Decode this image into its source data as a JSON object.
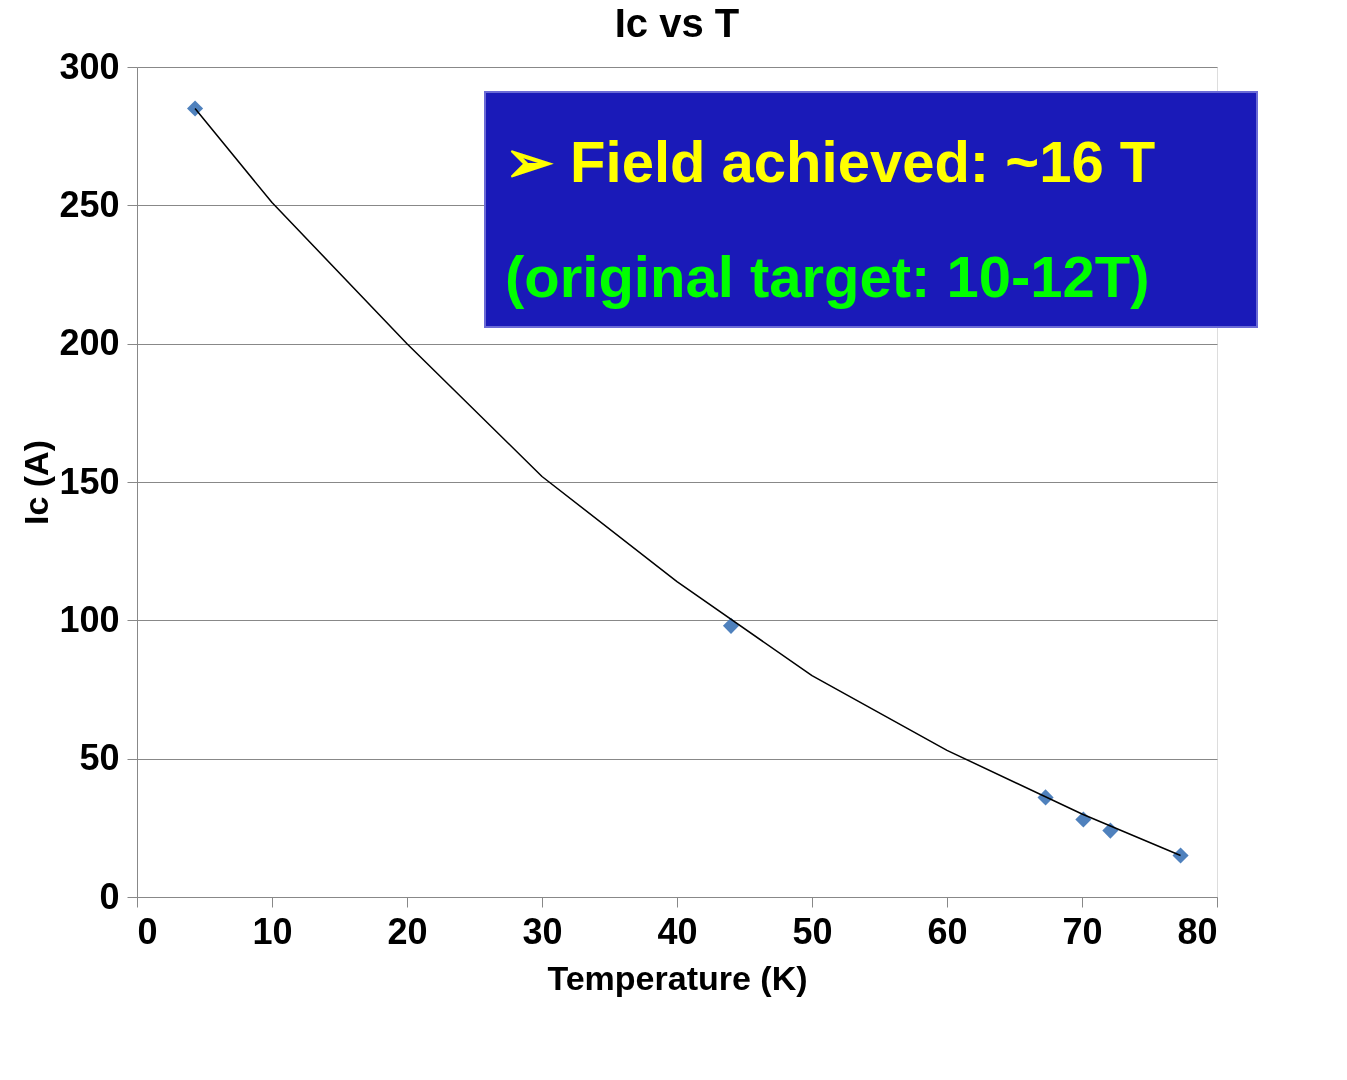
{
  "chart_data": {
    "type": "scatter",
    "title": "Ic vs T",
    "xlabel": "Temperature (K)",
    "ylabel": "Ic (A)",
    "xlim": [
      0,
      80
    ],
    "xticks": [
      0,
      10,
      20,
      30,
      40,
      50,
      60,
      70,
      80
    ],
    "ylim": [
      0,
      300
    ],
    "yticks": [
      0,
      50,
      100,
      150,
      200,
      250,
      300
    ],
    "grid": "y",
    "legend": false,
    "marker": "diamond",
    "series": [
      {
        "color": "#4f81bd",
        "x": [
          4.3,
          44.0,
          67.3,
          70.1,
          72.1,
          77.3
        ],
        "values": [
          285,
          98,
          36,
          28,
          24,
          15
        ]
      },
      {
        "type": "line",
        "color": "#000000",
        "line_style": "solid",
        "marker": "none",
        "x": [
          4.3,
          10,
          20,
          30,
          40,
          50,
          60,
          70,
          77.3
        ],
        "values": [
          285,
          251,
          200,
          152,
          114,
          80,
          53,
          30,
          15
        ]
      }
    ],
    "annotations": [
      "➢ Field achieved:  ~16 T",
      "(original target: 10-12T)"
    ]
  }
}
